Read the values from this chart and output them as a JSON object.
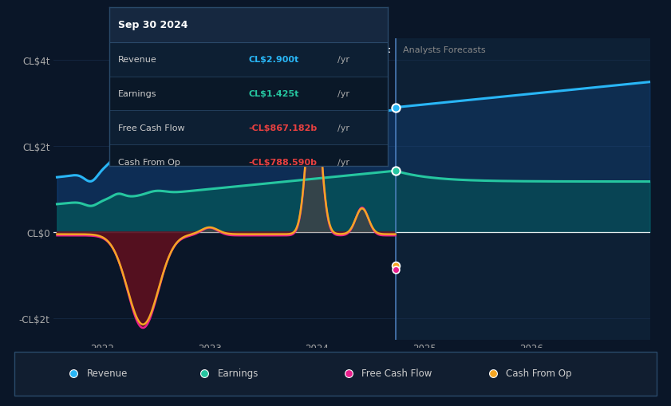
{
  "bg_color": "#0a1628",
  "plot_bg_color": "#0a1628",
  "ylim": [
    -2500000000000.0,
    4500000000000.0
  ],
  "xlim_start": 2021.55,
  "xlim_end": 2027.1,
  "past_x": 2024.73,
  "ytick_labels": [
    "-CL$2t",
    "CL$0",
    "CL$2t",
    "CL$4t"
  ],
  "ytick_vals": [
    -2000000000000.0,
    0,
    2000000000000.0,
    4000000000000.0
  ],
  "xticks": [
    2022,
    2023,
    2024,
    2025,
    2026
  ],
  "grid_color": "#1a3050",
  "revenue_color": "#29b6f6",
  "earnings_color": "#26c6a0",
  "fcf_color": "#e91e8c",
  "cashop_color": "#f5a623",
  "legend_items": [
    "Revenue",
    "Earnings",
    "Free Cash Flow",
    "Cash From Op"
  ],
  "legend_colors": [
    "#29b6f6",
    "#26c6a0",
    "#e91e8c",
    "#f5a623"
  ],
  "tooltip_date": "Sep 30 2024",
  "tooltip_rows": [
    [
      "Revenue",
      "CL$2.900t",
      "#29b6f6",
      "/yr"
    ],
    [
      "Earnings",
      "CL$1.425t",
      "#26c6a0",
      "/yr"
    ],
    [
      "Free Cash Flow",
      "-CL$867.182b",
      "#e84040",
      "/yr"
    ],
    [
      "Cash From Op",
      "-CL$788.590b",
      "#e84040",
      "/yr"
    ]
  ]
}
